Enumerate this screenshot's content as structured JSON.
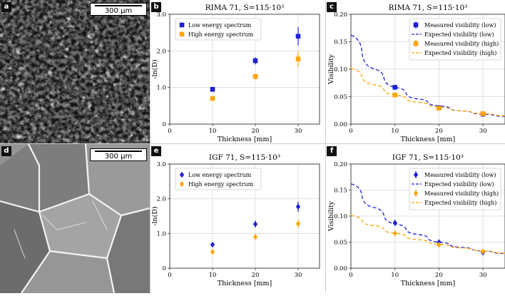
{
  "panels": {
    "a": {
      "label": "a",
      "scale_text": "300 μm"
    },
    "d": {
      "label": "d",
      "scale_text": "300 μm"
    }
  },
  "chart_data": [
    {
      "id": "b",
      "label": "b",
      "type": "scatter",
      "title": "RIMA 71, S=115·10³",
      "xlabel": "Thickness [mm]",
      "ylabel": "-ln(D)",
      "xlim": [
        0,
        35
      ],
      "ylim": [
        0,
        3.0
      ],
      "xticks": [
        0,
        10,
        20,
        30
      ],
      "yticks": [
        0,
        1.0,
        2.0,
        3.0
      ],
      "xtick_labels": [
        "0",
        "10",
        "20",
        "30"
      ],
      "ytick_labels": [
        "0",
        "1.0",
        "2.0",
        "3.0"
      ],
      "grid": true,
      "legend_position": "top-left",
      "marker": "square",
      "series": [
        {
          "name": "Low energy spectrum",
          "color": "#1f1fd8",
          "x": [
            10,
            20,
            30
          ],
          "y": [
            0.95,
            1.73,
            2.4
          ],
          "err": [
            0.04,
            0.1,
            0.25
          ]
        },
        {
          "name": "High energy spectrum",
          "color": "#ffa500",
          "x": [
            10,
            20,
            30
          ],
          "y": [
            0.7,
            1.3,
            1.78
          ],
          "err": [
            0.03,
            0.08,
            0.22
          ]
        }
      ]
    },
    {
      "id": "c",
      "label": "c",
      "type": "line",
      "title": "RIMA 71, S=115·10³",
      "xlabel": "Thickness [mm]",
      "ylabel": "Visibility",
      "xlim": [
        0,
        35
      ],
      "ylim": [
        0,
        0.2
      ],
      "xticks": [
        0,
        10,
        20,
        30
      ],
      "yticks": [
        0,
        0.05,
        0.1,
        0.15,
        0.2
      ],
      "xtick_labels": [
        "0",
        "10",
        "20",
        "30"
      ],
      "ytick_labels": [
        "0.00",
        "0.05",
        "0.10",
        "0.15",
        "0.20"
      ],
      "grid": true,
      "legend_position": "top-right",
      "marker": "square",
      "measured": [
        {
          "name": "Measured visibility (low)",
          "color": "#1f1fd8",
          "x": [
            10,
            20,
            30
          ],
          "y": [
            0.067,
            0.03,
            0.018
          ],
          "err": [
            0.004,
            0.003,
            0.003
          ]
        },
        {
          "name": "Measured visibility (high)",
          "color": "#ffa500",
          "x": [
            10,
            20,
            30
          ],
          "y": [
            0.053,
            0.029,
            0.019
          ],
          "err": [
            0.003,
            0.003,
            0.003
          ]
        }
      ],
      "expected": [
        {
          "name": "Expected visibility (low)",
          "color": "#1f1fd8",
          "x": [
            0,
            5,
            10,
            15,
            20,
            25,
            30,
            35
          ],
          "y": [
            0.162,
            0.101,
            0.067,
            0.046,
            0.033,
            0.024,
            0.018,
            0.014
          ]
        },
        {
          "name": "Expected visibility (high)",
          "color": "#ffa500",
          "x": [
            0,
            5,
            10,
            15,
            20,
            25,
            30,
            35
          ],
          "y": [
            0.101,
            0.072,
            0.053,
            0.04,
            0.031,
            0.024,
            0.019,
            0.015
          ]
        }
      ]
    },
    {
      "id": "e",
      "label": "e",
      "type": "scatter",
      "title": "IGF 71, S=115·10³",
      "xlabel": "Thickness [mm]",
      "ylabel": "-ln(D)",
      "xlim": [
        0,
        35
      ],
      "ylim": [
        0,
        3.0
      ],
      "xticks": [
        0,
        10,
        20,
        30
      ],
      "yticks": [
        0,
        1.0,
        2.0,
        3.0
      ],
      "xtick_labels": [
        "0",
        "10",
        "20",
        "30"
      ],
      "ytick_labels": [
        "0",
        "1.0",
        "2.0",
        "3.0"
      ],
      "grid": true,
      "legend_position": "top-left",
      "marker": "diamond",
      "series": [
        {
          "name": "Low energy spectrum",
          "color": "#1f1fd8",
          "x": [
            10,
            20,
            30
          ],
          "y": [
            0.68,
            1.27,
            1.77
          ],
          "err": [
            0.06,
            0.1,
            0.15
          ]
        },
        {
          "name": "High energy spectrum",
          "color": "#ffa500",
          "x": [
            10,
            20,
            30
          ],
          "y": [
            0.47,
            0.9,
            1.28
          ],
          "err": [
            0.05,
            0.08,
            0.12
          ]
        }
      ]
    },
    {
      "id": "f",
      "label": "f",
      "type": "line",
      "title": "IGF 71, S=115·10³",
      "xlabel": "Thickness [mm]",
      "ylabel": "Visibility",
      "xlim": [
        0,
        35
      ],
      "ylim": [
        0,
        0.2
      ],
      "xticks": [
        0,
        10,
        20,
        30
      ],
      "yticks": [
        0,
        0.05,
        0.1,
        0.15,
        0.2
      ],
      "xtick_labels": [
        "0",
        "10",
        "20",
        "30"
      ],
      "ytick_labels": [
        "0.00",
        "0.05",
        "0.10",
        "0.15",
        "0.20"
      ],
      "grid": true,
      "legend_position": "top-right",
      "marker": "diamond",
      "measured": [
        {
          "name": "Measured visibility (low)",
          "color": "#1f1fd8",
          "x": [
            10,
            20,
            30
          ],
          "y": [
            0.087,
            0.05,
            0.03
          ],
          "err": [
            0.006,
            0.004,
            0.003
          ]
        },
        {
          "name": "Measured visibility (high)",
          "color": "#ffa500",
          "x": [
            10,
            20,
            30
          ],
          "y": [
            0.067,
            0.045,
            0.032
          ],
          "err": [
            0.005,
            0.004,
            0.003
          ]
        }
      ],
      "expected": [
        {
          "name": "Expected visibility (low)",
          "color": "#1f1fd8",
          "x": [
            0,
            5,
            10,
            15,
            20,
            25,
            30,
            35
          ],
          "y": [
            0.162,
            0.117,
            0.085,
            0.065,
            0.05,
            0.04,
            0.033,
            0.028
          ]
        },
        {
          "name": "Expected visibility (high)",
          "color": "#ffa500",
          "x": [
            0,
            5,
            10,
            15,
            20,
            25,
            30,
            35
          ],
          "y": [
            0.101,
            0.082,
            0.067,
            0.055,
            0.046,
            0.039,
            0.033,
            0.029
          ]
        }
      ]
    }
  ]
}
